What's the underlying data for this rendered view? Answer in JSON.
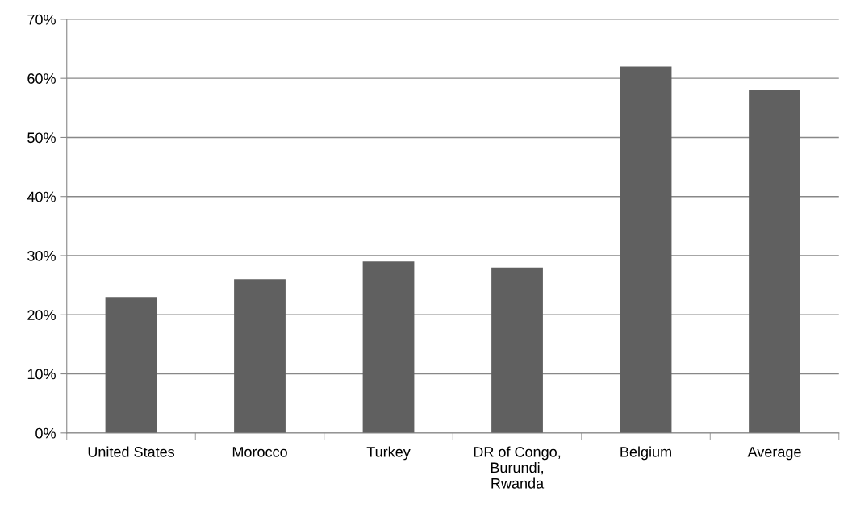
{
  "chart_data": {
    "type": "bar",
    "categories": [
      "United States",
      "Morocco",
      "Turkey",
      "DR of Congo,\nBurundi,\nRwanda",
      "Belgium",
      "Average"
    ],
    "values": [
      23,
      26,
      29,
      28,
      62,
      58
    ],
    "color": "#606060",
    "ylim": [
      0,
      70
    ],
    "yticks": [
      {
        "value": 0,
        "label": "0%"
      },
      {
        "value": 10,
        "label": "10%"
      },
      {
        "value": 20,
        "label": "20%"
      },
      {
        "value": 30,
        "label": "30%"
      },
      {
        "value": 40,
        "label": "40%"
      },
      {
        "value": 50,
        "label": "50%"
      },
      {
        "value": 60,
        "label": "60%"
      },
      {
        "value": 70,
        "label": "70%"
      }
    ],
    "grid": "y"
  }
}
